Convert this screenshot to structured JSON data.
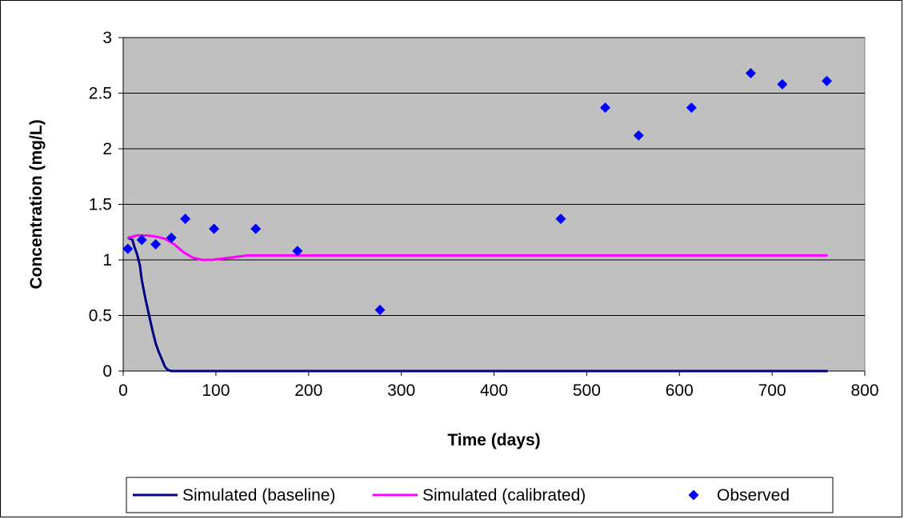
{
  "chart_data": {
    "type": "line",
    "xlabel": "Time (days)",
    "ylabel": "Concentration (mg/L)",
    "xlim": [
      0,
      800
    ],
    "ylim": [
      0,
      3
    ],
    "x_ticks": [
      0,
      100,
      200,
      300,
      400,
      500,
      600,
      700,
      800
    ],
    "y_ticks": [
      0,
      0.5,
      1,
      1.5,
      2,
      2.5,
      3
    ],
    "y_tick_labels": [
      "0",
      "0.5",
      "1",
      "1.5",
      "2",
      "2.5",
      "3"
    ],
    "grid": "horizontal",
    "legend_position": "bottom",
    "plot_background": "#c0c0c0",
    "series": [
      {
        "name": "Simulated (baseline)",
        "kind": "line",
        "color": "#000080",
        "points": [
          [
            5,
            1.2
          ],
          [
            10,
            1.18
          ],
          [
            12,
            1.12
          ],
          [
            15,
            1.05
          ],
          [
            18,
            0.95
          ],
          [
            20,
            0.82
          ],
          [
            24,
            0.65
          ],
          [
            28,
            0.5
          ],
          [
            32,
            0.35
          ],
          [
            35,
            0.25
          ],
          [
            38,
            0.18
          ],
          [
            42,
            0.1
          ],
          [
            45,
            0.04
          ],
          [
            48,
            0.01
          ],
          [
            52,
            0
          ],
          [
            100,
            0
          ],
          [
            200,
            0
          ],
          [
            400,
            0
          ],
          [
            600,
            0
          ],
          [
            760,
            0
          ]
        ]
      },
      {
        "name": "Simulated (calibrated)",
        "kind": "line",
        "color": "#ff00ff",
        "points": [
          [
            5,
            1.2
          ],
          [
            15,
            1.22
          ],
          [
            25,
            1.22
          ],
          [
            35,
            1.21
          ],
          [
            45,
            1.19
          ],
          [
            55,
            1.14
          ],
          [
            65,
            1.07
          ],
          [
            75,
            1.02
          ],
          [
            85,
            1.0
          ],
          [
            95,
            1.0
          ],
          [
            105,
            1.01
          ],
          [
            115,
            1.02
          ],
          [
            125,
            1.03
          ],
          [
            135,
            1.04
          ],
          [
            150,
            1.04
          ],
          [
            200,
            1.04
          ],
          [
            400,
            1.04
          ],
          [
            600,
            1.04
          ],
          [
            760,
            1.04
          ]
        ]
      },
      {
        "name": "Observed",
        "kind": "scatter",
        "color": "#0000ff",
        "points": [
          [
            5,
            1.1
          ],
          [
            20,
            1.18
          ],
          [
            35,
            1.14
          ],
          [
            52,
            1.2
          ],
          [
            67,
            1.37
          ],
          [
            98,
            1.28
          ],
          [
            143,
            1.28
          ],
          [
            188,
            1.08
          ],
          [
            277,
            0.55
          ],
          [
            472,
            1.37
          ],
          [
            520,
            2.37
          ],
          [
            556,
            2.12
          ],
          [
            613,
            2.37
          ],
          [
            677,
            2.68
          ],
          [
            711,
            2.58
          ],
          [
            759,
            2.61
          ]
        ]
      }
    ]
  }
}
